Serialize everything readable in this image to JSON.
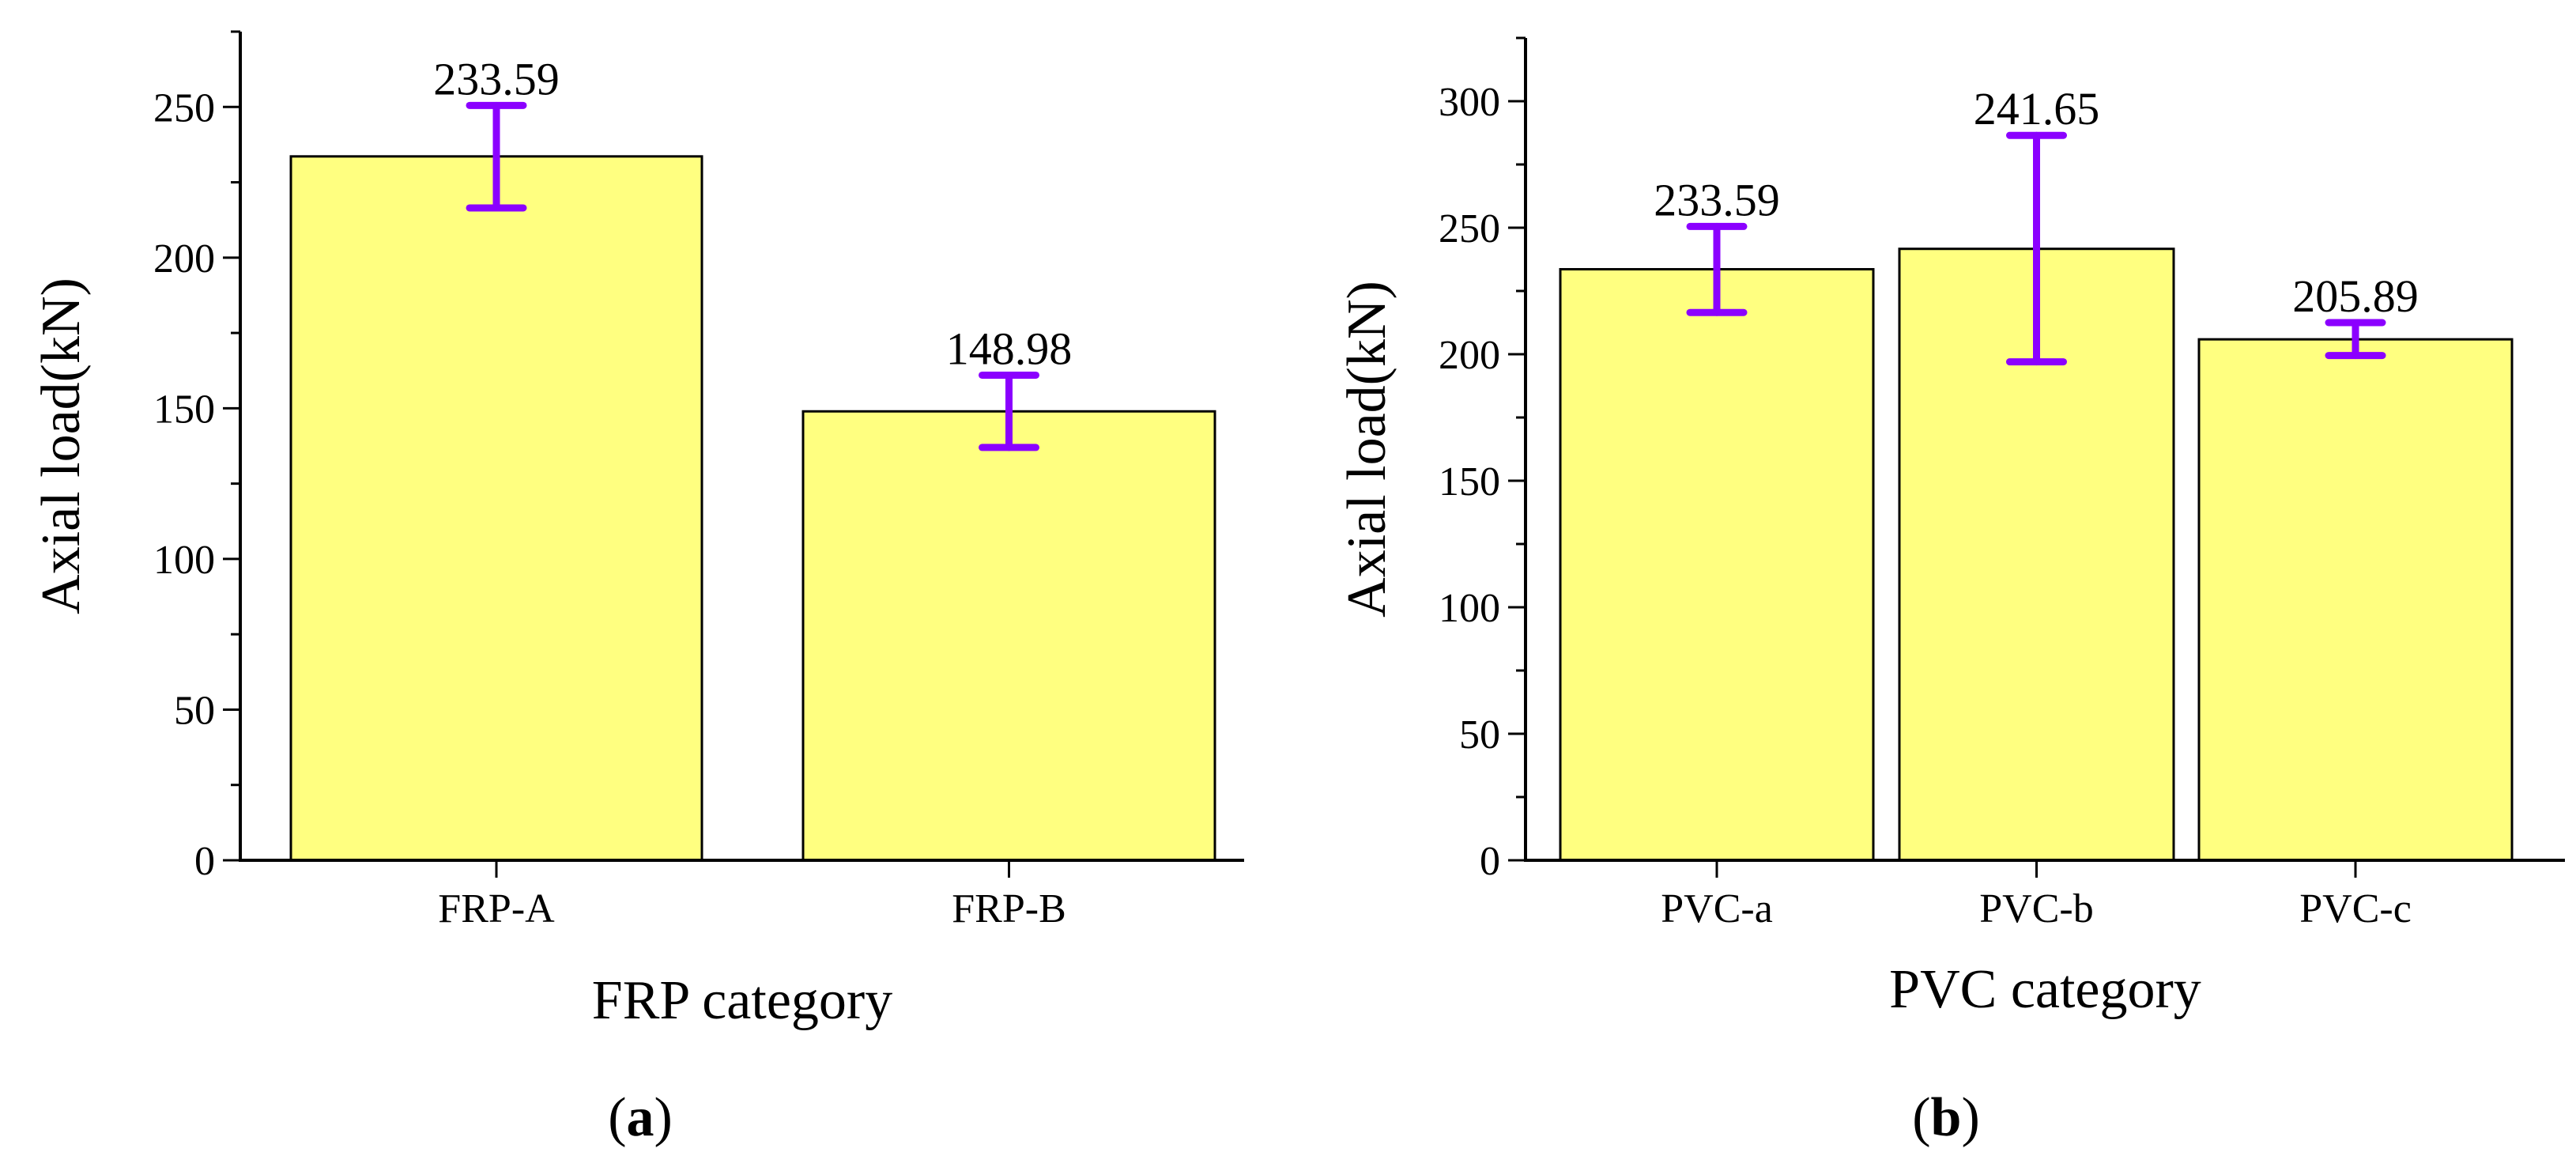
{
  "chart_data": [
    {
      "type": "bar",
      "panel_label": "a",
      "categories": [
        "FRP-A",
        "FRP-B"
      ],
      "values": [
        233.59,
        148.98
      ],
      "error_bars": [
        {
          "low": 216.5,
          "high": 250.5
        },
        {
          "low": 137.0,
          "high": 161.0
        }
      ],
      "data_labels": [
        "233.59",
        "148.98"
      ],
      "xlabel": "FRP category",
      "ylabel": "Axial load(kN)",
      "ylim": [
        0,
        275
      ],
      "yticks": [
        0,
        50,
        100,
        150,
        200,
        250
      ],
      "yticklabels": [
        "0",
        "50",
        "100",
        "150",
        "200",
        "250"
      ],
      "minor_tick_step": 25,
      "grid": false,
      "colors": {
        "bar": "#FFFF80",
        "bar_edge": "#000000",
        "error_bar": "#8B00FF"
      }
    },
    {
      "type": "bar",
      "panel_label": "b",
      "categories": [
        "PVC-a",
        "PVC-b",
        "PVC-c"
      ],
      "values": [
        233.59,
        241.65,
        205.89
      ],
      "error_bars": [
        {
          "low": 216.5,
          "high": 250.5
        },
        {
          "low": 197.0,
          "high": 286.5
        },
        {
          "low": 199.5,
          "high": 212.5
        }
      ],
      "data_labels": [
        "233.59",
        "241.65",
        "205.89"
      ],
      "xlabel": "PVC category",
      "ylabel": "Axial load(kN)",
      "ylim": [
        0,
        325
      ],
      "yticks": [
        0,
        50,
        100,
        150,
        200,
        250,
        300
      ],
      "yticklabels": [
        "0",
        "50",
        "100",
        "150",
        "200",
        "250",
        "300"
      ],
      "minor_tick_step": 25,
      "grid": false,
      "colors": {
        "bar": "#FFFF80",
        "bar_edge": "#000000",
        "error_bar": "#8B00FF"
      }
    }
  ]
}
